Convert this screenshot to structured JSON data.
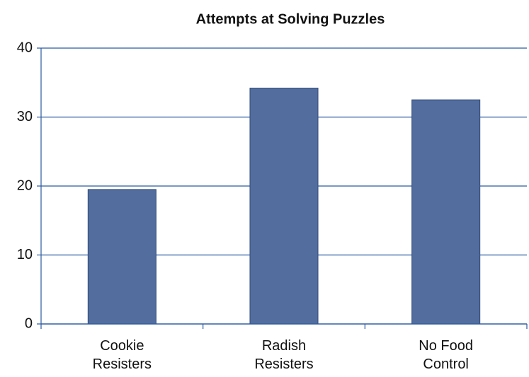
{
  "chart_data": {
    "type": "bar",
    "title": "Attempts at Solving Puzzles",
    "categories": [
      "Cookie\nResisters",
      "Radish\nResisters",
      "No Food\nControl"
    ],
    "values": [
      19.5,
      34.2,
      32.5
    ],
    "color": "#536e9e",
    "ylim": [
      0,
      40
    ],
    "yticks": [
      0,
      10,
      20,
      30,
      40
    ],
    "grid": true
  }
}
